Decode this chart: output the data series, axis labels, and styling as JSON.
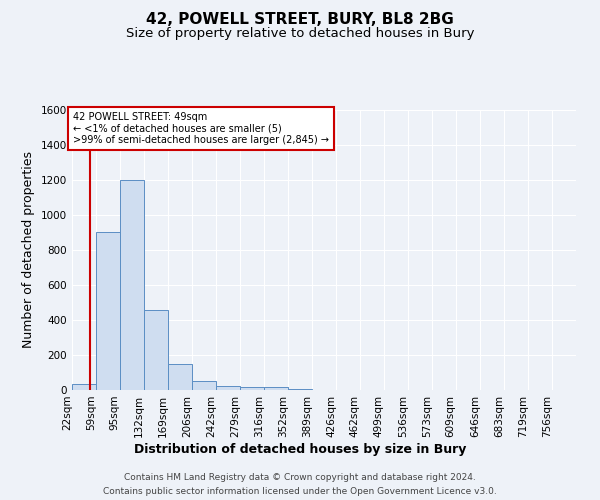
{
  "title": "42, POWELL STREET, BURY, BL8 2BG",
  "subtitle": "Size of property relative to detached houses in Bury",
  "xlabel": "Distribution of detached houses by size in Bury",
  "ylabel": "Number of detached properties",
  "footnote1": "Contains HM Land Registry data © Crown copyright and database right 2024.",
  "footnote2": "Contains public sector information licensed under the Open Government Licence v3.0.",
  "annotation_line1": "42 POWELL STREET: 49sqm",
  "annotation_line2": "← <1% of detached houses are smaller (5)",
  "annotation_line3": ">99% of semi-detached houses are larger (2,845) →",
  "subject_size": 49,
  "bin_labels": [
    "22sqm",
    "59sqm",
    "95sqm",
    "132sqm",
    "169sqm",
    "206sqm",
    "242sqm",
    "279sqm",
    "316sqm",
    "352sqm",
    "389sqm",
    "426sqm",
    "462sqm",
    "499sqm",
    "536sqm",
    "573sqm",
    "609sqm",
    "646sqm",
    "683sqm",
    "719sqm",
    "756sqm"
  ],
  "bin_edges": [
    22,
    59,
    95,
    132,
    169,
    206,
    242,
    279,
    316,
    352,
    389,
    426,
    462,
    499,
    536,
    573,
    609,
    646,
    683,
    719,
    756
  ],
  "bar_values": [
    35,
    900,
    1200,
    460,
    150,
    50,
    25,
    15,
    15,
    8,
    0,
    0,
    0,
    0,
    0,
    0,
    0,
    0,
    0,
    0
  ],
  "bar_color": "#cfddf0",
  "bar_edge_color": "#5b8ec4",
  "line_color": "#cc0000",
  "annotation_box_edge": "#cc0000",
  "ylim": [
    0,
    1600
  ],
  "yticks": [
    0,
    200,
    400,
    600,
    800,
    1000,
    1200,
    1400,
    1600
  ],
  "background_color": "#eef2f8",
  "plot_background": "#eef2f8",
  "title_fontsize": 11,
  "subtitle_fontsize": 9.5,
  "axis_label_fontsize": 9,
  "tick_fontsize": 7.5,
  "footnote_fontsize": 6.5
}
